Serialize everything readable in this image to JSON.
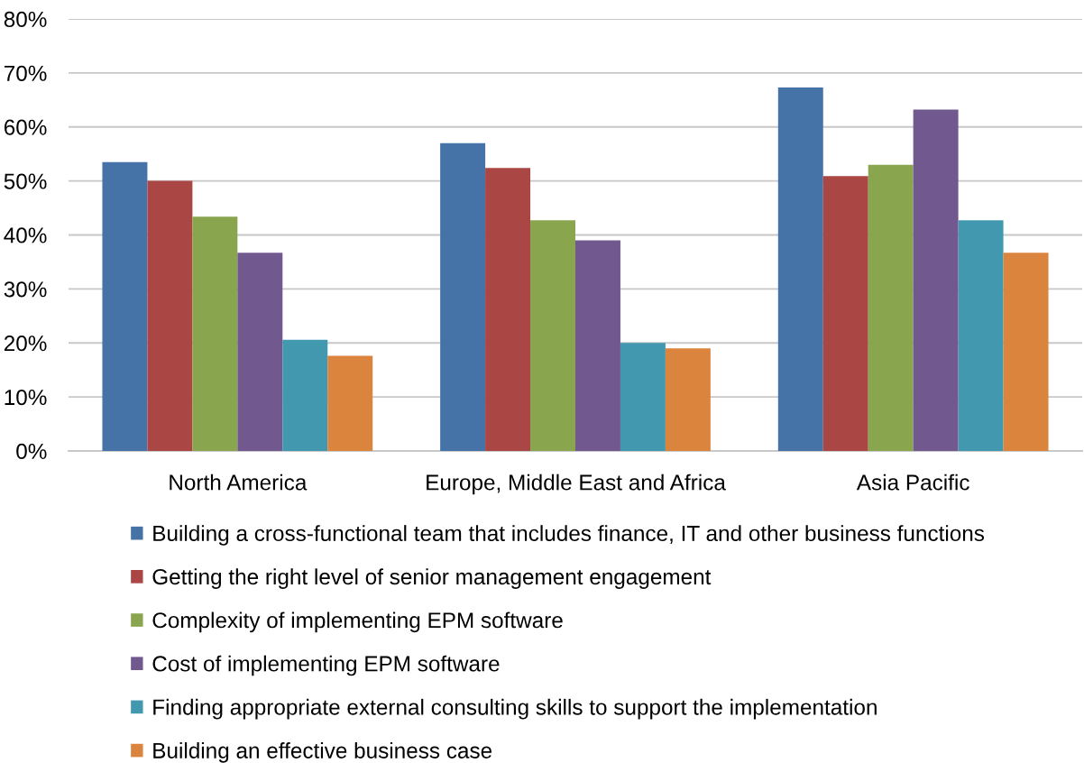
{
  "chart_data": {
    "type": "bar",
    "categories": [
      "North America",
      "Europe, Middle East and Africa",
      "Asia Pacific"
    ],
    "series": [
      {
        "name": "Building a cross-functional team that includes finance, IT and other business functions",
        "color": "#4572a7",
        "values": [
          53.5,
          57.0,
          67.3
        ]
      },
      {
        "name": "Getting the right level of senior management engagement",
        "color": "#aa4643",
        "values": [
          50.0,
          52.4,
          50.9
        ]
      },
      {
        "name": "Complexity of implementing EPM software",
        "color": "#89a54e",
        "values": [
          43.4,
          42.7,
          53.0
        ]
      },
      {
        "name": "Cost of implementing EPM software",
        "color": "#71588f",
        "values": [
          36.7,
          39.0,
          63.2
        ]
      },
      {
        "name": "Finding appropriate external consulting skills to support the implementation",
        "color": "#4198af",
        "values": [
          20.6,
          20.0,
          42.7
        ]
      },
      {
        "name": "Building an effective business case",
        "color": "#db843d",
        "values": [
          17.6,
          19.0,
          36.7
        ]
      }
    ],
    "ylim": [
      0,
      80
    ],
    "yticks": [
      {
        "value": 0,
        "label": "0%"
      },
      {
        "value": 10,
        "label": "10%"
      },
      {
        "value": 20,
        "label": "20%"
      },
      {
        "value": 30,
        "label": "30%"
      },
      {
        "value": 40,
        "label": "40%"
      },
      {
        "value": 50,
        "label": "50%"
      },
      {
        "value": 60,
        "label": "60%"
      },
      {
        "value": 70,
        "label": "70%"
      },
      {
        "value": 80,
        "label": "80%"
      }
    ],
    "grid": "y",
    "legend": "bottom"
  }
}
